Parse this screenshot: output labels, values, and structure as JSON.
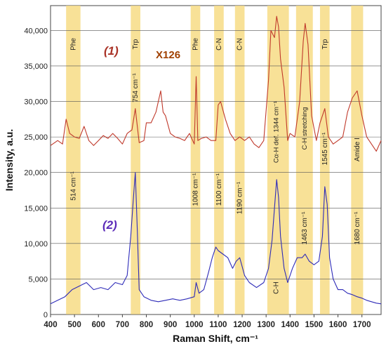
{
  "chart_data": {
    "type": "line",
    "xlabel": "Raman Shift, cm⁻¹",
    "ylabel": "Intensity, a.u.",
    "xlim": [
      400,
      1780
    ],
    "ylim": [
      0,
      43500
    ],
    "x_ticks": [
      400,
      500,
      600,
      700,
      800,
      900,
      1000,
      1100,
      1200,
      1300,
      1400,
      1500,
      1600,
      1700
    ],
    "y_ticks": [
      0,
      5000,
      10000,
      15000,
      20000,
      25000,
      30000,
      35000,
      40000
    ],
    "y_tick_labels": [
      "0",
      "5,000",
      "10,000",
      "15,000",
      "20,000",
      "25,000",
      "30,000",
      "35,000",
      "40,000"
    ],
    "grid": true,
    "bands": [
      {
        "from": 465,
        "to": 525,
        "top_label": "Phe",
        "label": "514 cm⁻¹"
      },
      {
        "from": 735,
        "to": 775,
        "top_label": "Trp",
        "label": "754 cm⁻¹"
      },
      {
        "from": 985,
        "to": 1025,
        "top_label": "Phe",
        "label": "1008 cm⁻¹"
      },
      {
        "from": 1083,
        "to": 1123,
        "top_label": "C-N",
        "label": "1100 cm⁻¹"
      },
      {
        "from": 1170,
        "to": 1210,
        "top_label": "C-N",
        "label": "1190 cm⁻¹"
      },
      {
        "from": 1305,
        "to": 1395,
        "top_label": "",
        "label": "Cα-H def. 1344 cm⁻¹"
      },
      {
        "from": 1425,
        "to": 1495,
        "top_label": "",
        "label": "C-H stretching"
      },
      {
        "from": 1525,
        "to": 1565,
        "top_label": "Trp",
        "label": "1545 cm⁻¹"
      },
      {
        "from": 1655,
        "to": 1705,
        "top_label": "",
        "label": "Amide I"
      }
    ],
    "extra_labels": {
      "band_1463": "1463 cm⁻¹",
      "band_1680": "1680 cm⁻¹",
      "ch_low": "C-H"
    },
    "annotations": {
      "curve1": "(1)",
      "curve2": "(2)",
      "magnification": "X126"
    },
    "series": [
      {
        "name": "(1)",
        "color": "#c0392b",
        "x": [
          400,
          430,
          450,
          465,
          480,
          500,
          520,
          540,
          560,
          580,
          600,
          620,
          640,
          660,
          680,
          700,
          720,
          740,
          754,
          770,
          790,
          800,
          820,
          840,
          860,
          870,
          880,
          900,
          920,
          940,
          960,
          980,
          1000,
          1008,
          1015,
          1030,
          1050,
          1070,
          1090,
          1100,
          1110,
          1130,
          1150,
          1170,
          1190,
          1210,
          1230,
          1250,
          1270,
          1290,
          1310,
          1320,
          1335,
          1344,
          1352,
          1360,
          1375,
          1390,
          1400,
          1420,
          1440,
          1455,
          1463,
          1475,
          1490,
          1510,
          1525,
          1545,
          1560,
          1580,
          1600,
          1620,
          1640,
          1660,
          1680,
          1700,
          1720,
          1740,
          1760,
          1780
        ],
        "y": [
          23800,
          24500,
          24000,
          27500,
          25500,
          25000,
          24800,
          26500,
          24500,
          23800,
          24500,
          25200,
          24800,
          25500,
          24800,
          24000,
          25500,
          26000,
          29000,
          24200,
          24500,
          27000,
          27000,
          28500,
          31500,
          28500,
          28000,
          25500,
          25000,
          24800,
          24500,
          25500,
          24000,
          33500,
          24500,
          24800,
          25000,
          24500,
          24500,
          29500,
          30000,
          27500,
          25500,
          24500,
          25000,
          24500,
          25000,
          24000,
          23500,
          24500,
          33000,
          40000,
          39000,
          42000,
          40500,
          36000,
          32000,
          24500,
          25500,
          25000,
          30000,
          38500,
          41000,
          38000,
          28000,
          24500,
          27000,
          29000,
          25000,
          24000,
          24500,
          25000,
          28500,
          30500,
          31500,
          28000,
          25000,
          24000,
          23000,
          24500
        ]
      },
      {
        "name": "(2)",
        "color": "#2e2bb8",
        "x": [
          400,
          430,
          460,
          490,
          520,
          550,
          580,
          610,
          640,
          670,
          700,
          720,
          735,
          745,
          754,
          762,
          770,
          790,
          820,
          850,
          880,
          910,
          940,
          970,
          1000,
          1008,
          1020,
          1040,
          1060,
          1075,
          1090,
          1100,
          1120,
          1140,
          1160,
          1175,
          1190,
          1210,
          1230,
          1260,
          1290,
          1310,
          1325,
          1335,
          1344,
          1352,
          1360,
          1375,
          1390,
          1410,
          1430,
          1450,
          1463,
          1480,
          1500,
          1520,
          1535,
          1545,
          1555,
          1565,
          1580,
          1600,
          1620,
          1640,
          1660,
          1680,
          1700,
          1720,
          1740,
          1760,
          1780
        ],
        "y": [
          1500,
          2000,
          2500,
          3500,
          4000,
          4500,
          3500,
          3800,
          3500,
          4500,
          4200,
          5500,
          11000,
          16000,
          20000,
          12000,
          3500,
          2500,
          2000,
          1800,
          2000,
          2200,
          2000,
          2200,
          2500,
          4500,
          3000,
          3500,
          6000,
          8000,
          9500,
          9000,
          8500,
          8000,
          6500,
          7500,
          8000,
          5500,
          4500,
          3800,
          4500,
          6500,
          10500,
          15000,
          19000,
          16500,
          11000,
          6500,
          4500,
          6500,
          8000,
          8000,
          8500,
          7500,
          7000,
          7500,
          11000,
          18000,
          15500,
          8000,
          5000,
          3500,
          3500,
          3000,
          2800,
          2500,
          2300,
          2000,
          1800,
          1600,
          1500
        ]
      }
    ]
  }
}
